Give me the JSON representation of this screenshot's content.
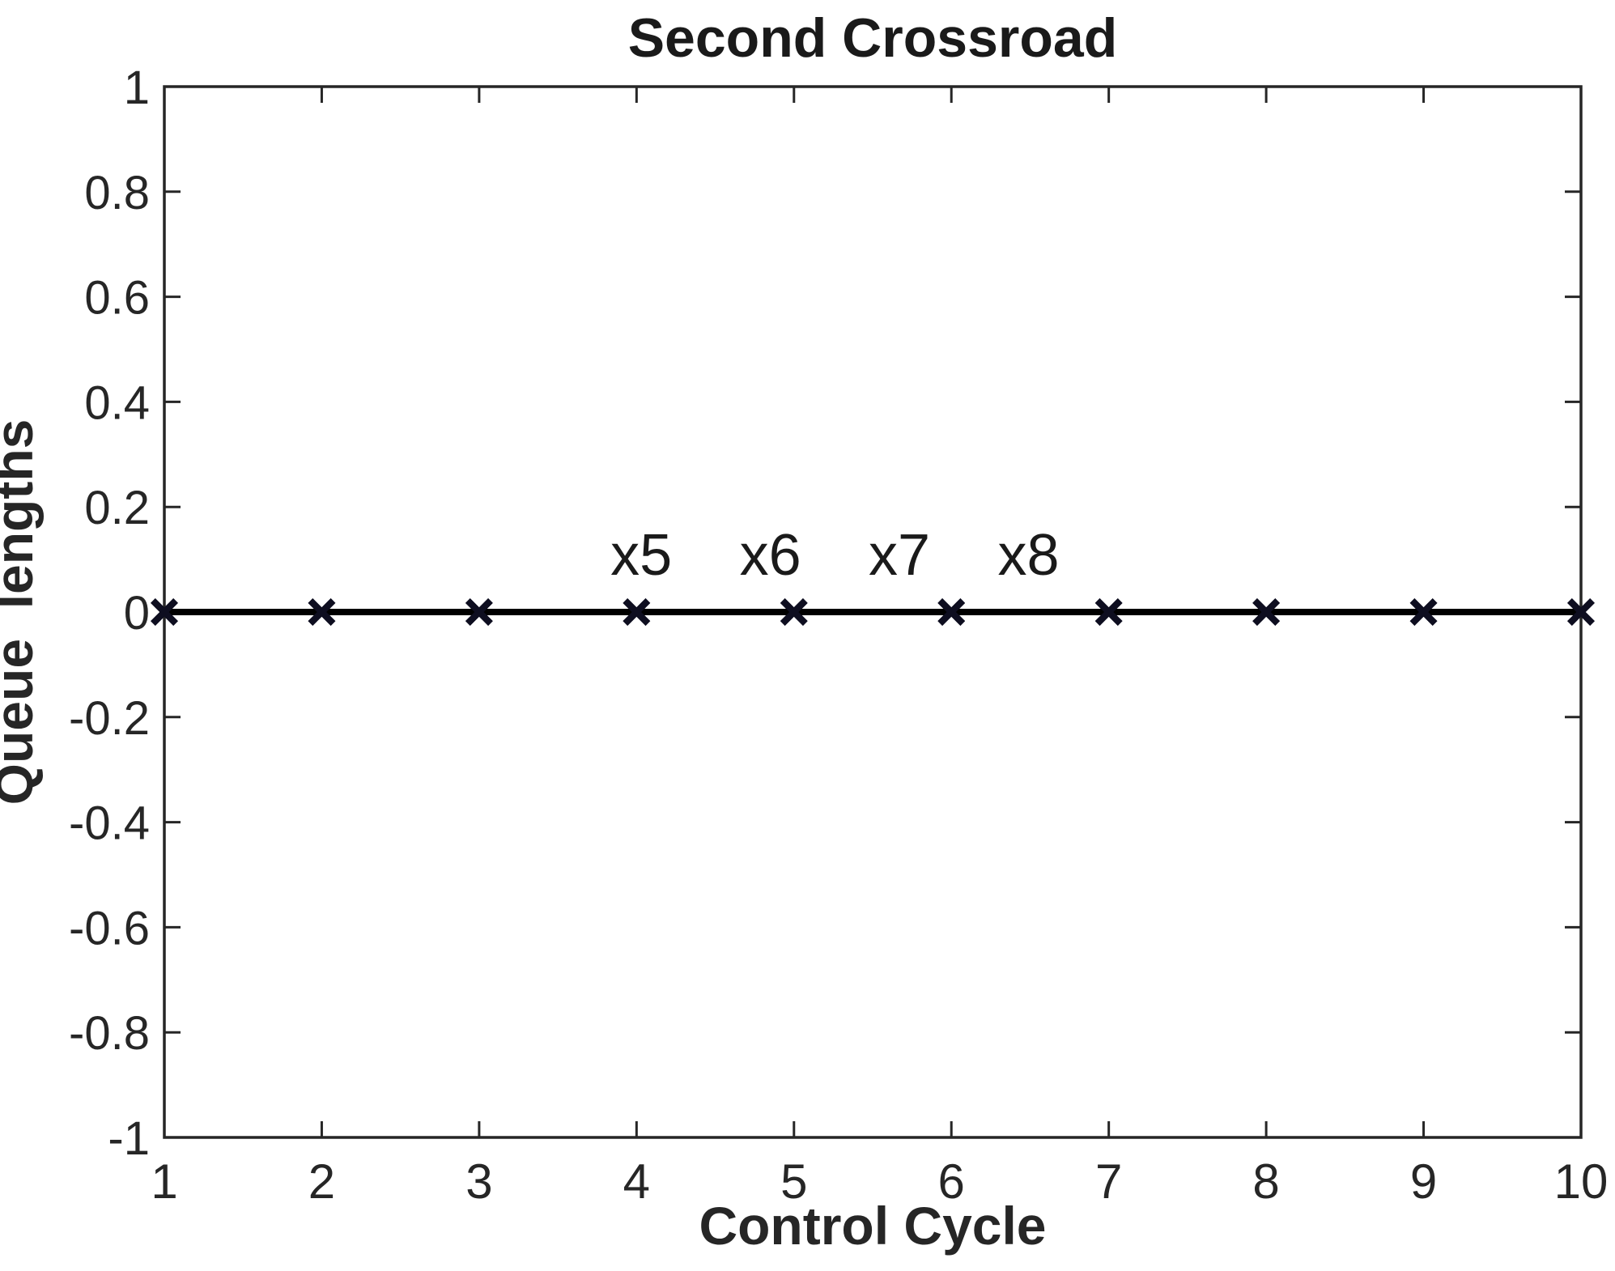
{
  "figure": {
    "background_color": "#ffffff",
    "axis_color": "#262626",
    "text_color": "#1a1a1a",
    "line_color": "#000000",
    "marker_color": "#0e0e20"
  },
  "chart_data": {
    "type": "line",
    "title": "Second Crossroad",
    "xlabel": "Control Cycle",
    "ylabel": "Queue  lengths",
    "x": [
      1,
      2,
      3,
      4,
      5,
      6,
      7,
      8,
      9,
      10
    ],
    "series": [
      {
        "name": "x5",
        "values": [
          0,
          0,
          0,
          0,
          0,
          0,
          0,
          0,
          0,
          0
        ]
      },
      {
        "name": "x6",
        "values": [
          0,
          0,
          0,
          0,
          0,
          0,
          0,
          0,
          0,
          0
        ]
      },
      {
        "name": "x7",
        "values": [
          0,
          0,
          0,
          0,
          0,
          0,
          0,
          0,
          0,
          0
        ]
      },
      {
        "name": "x8",
        "values": [
          0,
          0,
          0,
          0,
          0,
          0,
          0,
          0,
          0,
          0
        ]
      }
    ],
    "xlim": [
      1,
      10
    ],
    "ylim": [
      -1,
      1
    ],
    "grid": false,
    "legend": "none",
    "marker": "x",
    "x_ticks": [
      {
        "value": 1,
        "label": "1"
      },
      {
        "value": 2,
        "label": "2"
      },
      {
        "value": 3,
        "label": "3"
      },
      {
        "value": 4,
        "label": "4"
      },
      {
        "value": 5,
        "label": "5"
      },
      {
        "value": 6,
        "label": "6"
      },
      {
        "value": 7,
        "label": "7"
      },
      {
        "value": 8,
        "label": "8"
      },
      {
        "value": 9,
        "label": "9"
      },
      {
        "value": 10,
        "label": "10"
      }
    ],
    "y_ticks": [
      {
        "value": 1,
        "label": "1"
      },
      {
        "value": 0.8,
        "label": "0.8"
      },
      {
        "value": 0.6,
        "label": "0.6"
      },
      {
        "value": 0.4,
        "label": "0.4"
      },
      {
        "value": 0.2,
        "label": "0.2"
      },
      {
        "value": 0,
        "label": "0"
      },
      {
        "value": -0.2,
        "label": "-0.2"
      },
      {
        "value": -0.4,
        "label": "-0.4"
      },
      {
        "value": -0.6,
        "label": "-0.6"
      },
      {
        "value": -0.8,
        "label": "-0.8"
      },
      {
        "value": -1,
        "label": "-1"
      }
    ],
    "annotations": [
      {
        "text": "x5",
        "x": 4.03,
        "y": 0.111
      },
      {
        "text": "x6",
        "x": 4.85,
        "y": 0.111
      },
      {
        "text": "x7",
        "x": 5.67,
        "y": 0.111
      },
      {
        "text": "x8",
        "x": 6.49,
        "y": 0.111
      }
    ]
  }
}
